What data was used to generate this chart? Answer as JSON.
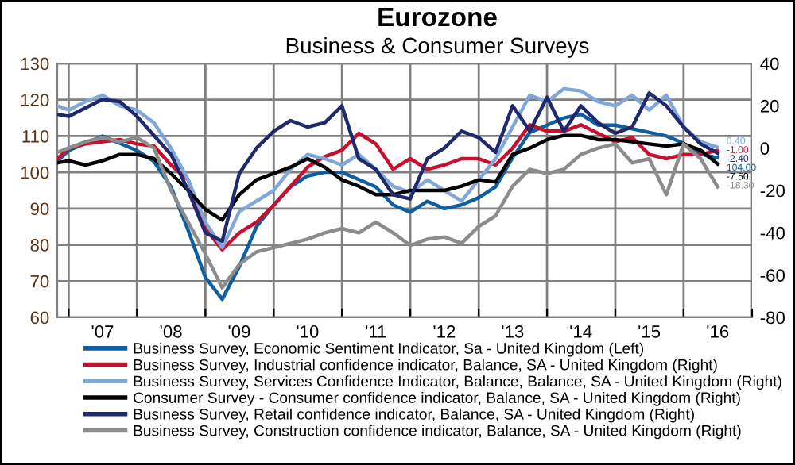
{
  "chart_data": {
    "type": "line",
    "title": "Eurozone",
    "subtitle": "Business & Consumer Surveys",
    "x": [
      "2006-11",
      "2007-01",
      "2007-04",
      "2007-07",
      "2007-10",
      "2008-01",
      "2008-04",
      "2008-07",
      "2008-10",
      "2009-01",
      "2009-04",
      "2009-07",
      "2009-10",
      "2010-01",
      "2010-04",
      "2010-07",
      "2010-10",
      "2011-01",
      "2011-04",
      "2011-07",
      "2011-10",
      "2012-01",
      "2012-04",
      "2012-07",
      "2012-10",
      "2013-01",
      "2013-04",
      "2013-07",
      "2013-10",
      "2014-01",
      "2014-04",
      "2014-07",
      "2014-10",
      "2015-01",
      "2015-04",
      "2015-07",
      "2015-10",
      "2016-01",
      "2016-04",
      "2016-07"
    ],
    "xlim": [
      "2006-11",
      "2017-01"
    ],
    "xticks": [
      {
        "value": "2007-01",
        "label": null
      },
      {
        "value": "2008-01",
        "label": null
      },
      {
        "value": "2009-01",
        "label": null
      },
      {
        "value": "2010-01",
        "label": null
      },
      {
        "value": "2011-01",
        "label": null
      },
      {
        "value": "2012-01",
        "label": null
      },
      {
        "value": "2013-01",
        "label": null
      },
      {
        "value": "2014-01",
        "label": null
      },
      {
        "value": "2015-01",
        "label": null
      },
      {
        "value": "2016-01",
        "label": null
      },
      {
        "value": "2017-01",
        "label": null
      },
      {
        "value": "2007-07",
        "label": "'07"
      },
      {
        "value": "2008-07",
        "label": "'08"
      },
      {
        "value": "2009-07",
        "label": "'09"
      },
      {
        "value": "2010-07",
        "label": "'10"
      },
      {
        "value": "2011-07",
        "label": "'11"
      },
      {
        "value": "2012-07",
        "label": "'12"
      },
      {
        "value": "2013-07",
        "label": "'13"
      },
      {
        "value": "2014-07",
        "label": "'14"
      },
      {
        "value": "2015-07",
        "label": "'15"
      },
      {
        "value": "2016-07",
        "label": "'16"
      }
    ],
    "ylim": [
      60,
      130
    ],
    "yticks": [
      60,
      70,
      80,
      90,
      100,
      110,
      120,
      130
    ],
    "y2lim": [
      -80,
      40
    ],
    "y2ticks": [
      -80,
      -60,
      -40,
      -20,
      0,
      20,
      40
    ],
    "grid": true,
    "legend": "bottom",
    "marker": "none",
    "line_style": "solid",
    "series": [
      {
        "name": "Business Survey, Economic Sentiment Indicator, Sa - United Kingdom (Left)",
        "color": "#0f5f9f",
        "values": [
          103,
          106,
          108,
          110,
          108,
          106,
          103,
          96,
          84,
          71,
          65,
          74,
          85,
          91,
          96,
          99,
          100,
          100,
          98,
          96,
          91,
          89,
          92,
          90,
          91,
          93,
          96,
          104,
          111,
          113,
          115,
          116,
          113,
          113,
          112,
          111,
          110,
          108,
          105,
          104
        ],
        "value_labels": [
          null,
          null,
          null,
          null,
          null,
          null,
          null,
          null,
          null,
          null,
          null,
          null,
          null,
          null,
          null,
          null,
          null,
          null,
          null,
          null,
          null,
          null,
          null,
          null,
          null,
          null,
          null,
          null,
          null,
          null,
          null,
          null,
          null,
          null,
          null,
          null,
          null,
          null,
          null,
          "104.00"
        ]
      },
      {
        "name": "Business Survey, Industrial confidence indicator, Balance, SA - United Kingdom (Right)",
        "color": "#c8102e",
        "axis": "y2",
        "values": [
          -5,
          0,
          2,
          3,
          4,
          2,
          1,
          -8,
          -15,
          -38,
          -48,
          -40,
          -35,
          -27,
          -18,
          -9,
          -4,
          -1,
          7,
          2,
          -10,
          -5,
          -10,
          -8,
          -5,
          -5,
          -8,
          0,
          11,
          8,
          8,
          11,
          7,
          3,
          5,
          -3,
          -5,
          -3,
          -3,
          -1
        ],
        "value_labels": [
          null,
          null,
          null,
          null,
          null,
          null,
          null,
          null,
          null,
          null,
          null,
          null,
          null,
          null,
          null,
          null,
          null,
          null,
          null,
          null,
          null,
          null,
          null,
          null,
          null,
          null,
          null,
          null,
          null,
          null,
          null,
          null,
          null,
          null,
          null,
          null,
          null,
          null,
          null,
          "-1.00"
        ]
      },
      {
        "name": "Business Survey, Services Confidence Indicator, Balance, Balance, SA - United Kingdom (Right)",
        "color": "#7fa7d8",
        "axis": "y2",
        "values": [
          20,
          18,
          22,
          25,
          20,
          18,
          12,
          0,
          -15,
          -35,
          -47,
          -30,
          -25,
          -20,
          -10,
          -3,
          -5,
          -8,
          -3,
          -10,
          -18,
          -21,
          -15,
          -20,
          -25,
          -15,
          -5,
          10,
          25,
          22,
          28,
          27,
          22,
          20,
          25,
          18,
          25,
          10,
          3,
          0.4
        ],
        "value_labels": [
          null,
          null,
          null,
          null,
          null,
          null,
          null,
          null,
          null,
          null,
          null,
          null,
          null,
          null,
          null,
          null,
          null,
          null,
          null,
          null,
          null,
          null,
          null,
          null,
          null,
          null,
          null,
          null,
          null,
          null,
          null,
          null,
          null,
          null,
          null,
          null,
          null,
          null,
          null,
          "0.40"
        ]
      },
      {
        "name": "Consumer Survey - Consumer confidence indicator, Balance, SA - United Kingdom (Right)",
        "color": "#000000",
        "axis": "y2",
        "values": [
          -7,
          -6,
          -8,
          -6,
          -3,
          -3,
          -5,
          -12,
          -20,
          -29,
          -34,
          -22,
          -15,
          -12,
          -9,
          -5,
          -9,
          -15,
          -18,
          -22,
          -22,
          -20,
          -20,
          -20,
          -18,
          -15,
          -16,
          -3,
          0,
          4,
          6,
          6,
          4,
          4,
          3,
          2,
          1,
          2,
          -1,
          -7.5
        ],
        "value_labels": [
          null,
          null,
          null,
          null,
          null,
          null,
          null,
          null,
          null,
          null,
          null,
          null,
          null,
          null,
          null,
          null,
          null,
          null,
          null,
          null,
          null,
          null,
          null,
          null,
          null,
          null,
          null,
          null,
          null,
          null,
          null,
          null,
          null,
          null,
          null,
          null,
          null,
          null,
          null,
          "-7.50"
        ]
      },
      {
        "name": "Business Survey, Retail confidence indicator, Balance, SA - United Kingdom (Right)",
        "color": "#1f2a6e",
        "axis": "y2",
        "values": [
          16,
          15,
          19,
          23,
          22,
          15,
          6,
          -3,
          -20,
          -40,
          -44,
          -12,
          0,
          8,
          13,
          10,
          12,
          20,
          -5,
          -10,
          -22,
          -24,
          -5,
          0,
          8,
          5,
          -2,
          20,
          8,
          24,
          8,
          20,
          12,
          7,
          10,
          26,
          20,
          10,
          2,
          -2.4
        ],
        "value_labels": [
          null,
          null,
          null,
          null,
          null,
          null,
          null,
          null,
          null,
          null,
          null,
          null,
          null,
          null,
          null,
          null,
          null,
          null,
          null,
          null,
          null,
          null,
          null,
          null,
          null,
          null,
          null,
          null,
          null,
          null,
          null,
          null,
          null,
          null,
          null,
          null,
          null,
          null,
          null,
          "-2.40"
        ]
      },
      {
        "name": "Business Survey, Construction confidence indicator, Balance, SA - United Kingdom (Right)",
        "color": "#8c8c8c",
        "axis": "y2",
        "values": [
          -2,
          0,
          3,
          5,
          3,
          5,
          0,
          -20,
          -35,
          -50,
          -66,
          -55,
          -49,
          -47,
          -45,
          -43,
          -40,
          -38,
          -40,
          -35,
          -40,
          -46,
          -43,
          -42,
          -45,
          -37,
          -32,
          -18,
          -10,
          -12,
          -10,
          -3,
          0,
          2,
          -7,
          -5,
          -22,
          2,
          -5,
          -18.3
        ],
        "value_labels": [
          null,
          null,
          null,
          null,
          null,
          null,
          null,
          null,
          null,
          null,
          null,
          null,
          null,
          null,
          null,
          null,
          null,
          null,
          null,
          null,
          null,
          null,
          null,
          null,
          null,
          null,
          null,
          null,
          null,
          null,
          null,
          null,
          null,
          null,
          null,
          null,
          null,
          null,
          null,
          "-18.30"
        ]
      }
    ]
  }
}
